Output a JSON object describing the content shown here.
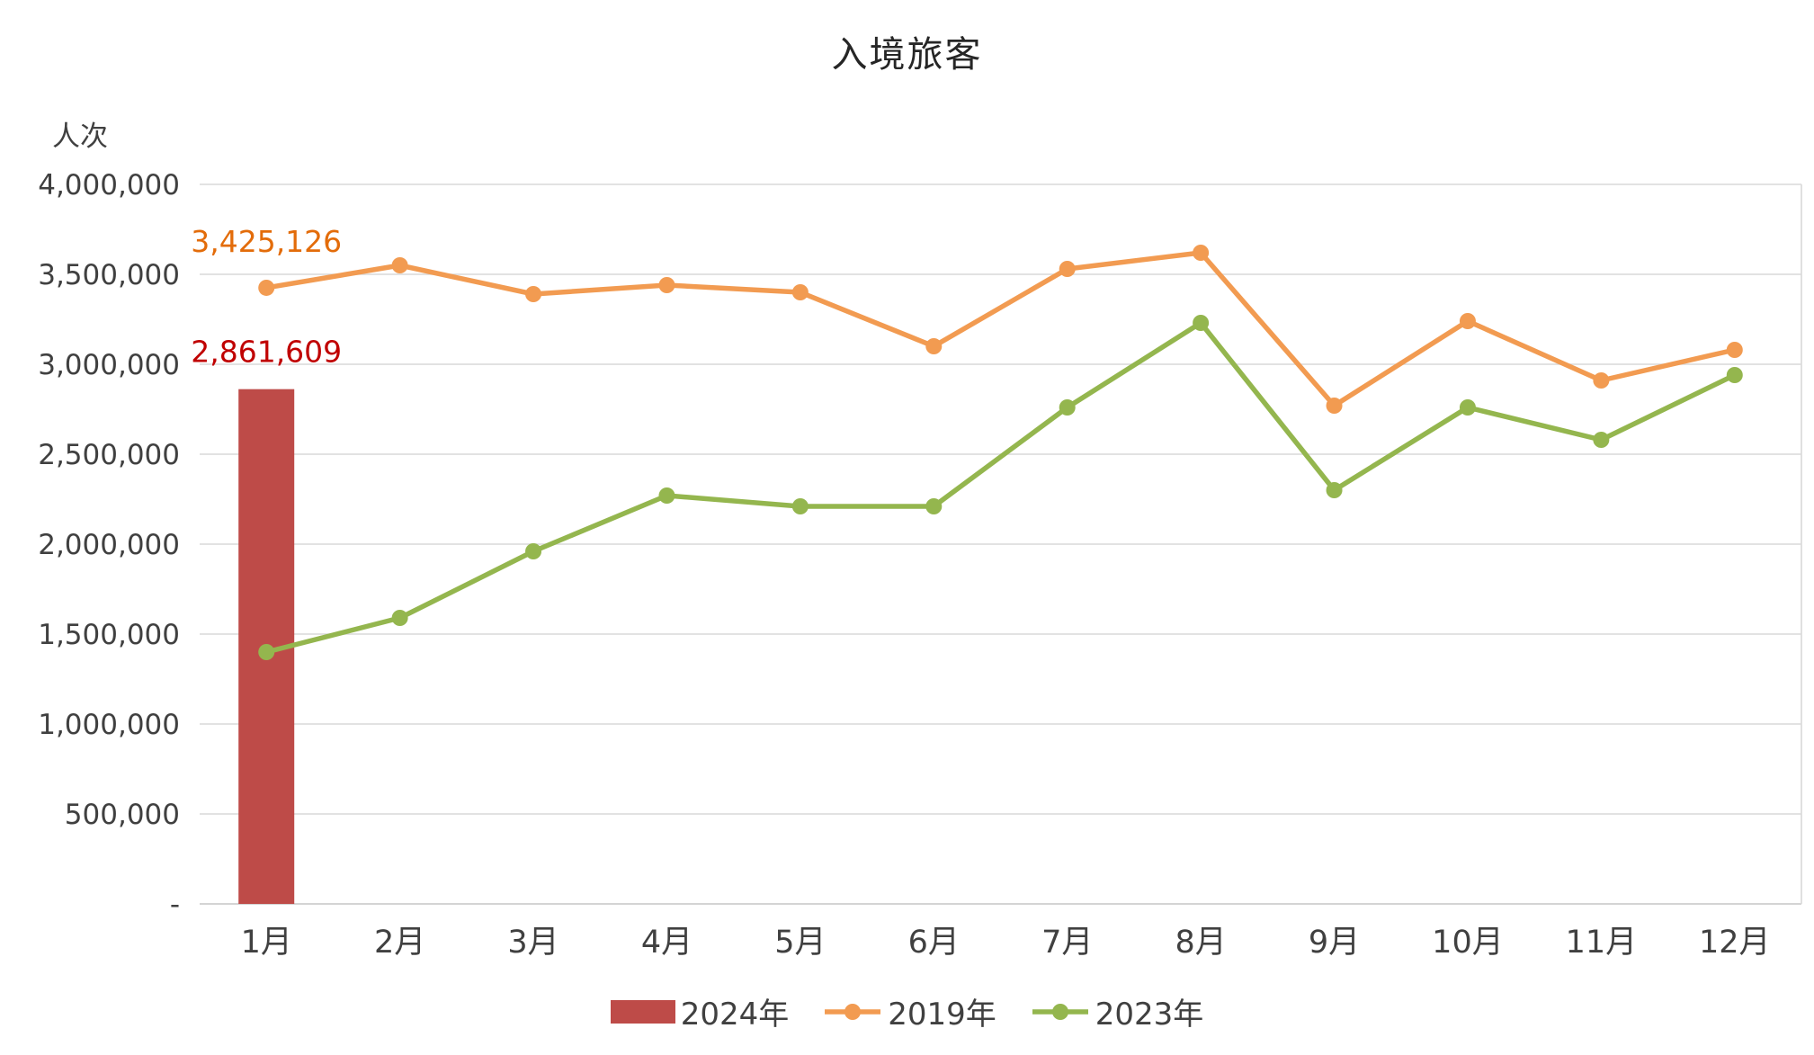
{
  "title": "入境旅客",
  "y_axis": {
    "unit_label": "人次",
    "tick_labels": [
      "4,000,000",
      "3,500,000",
      "3,000,000",
      "2,500,000",
      "2,000,000",
      "1,500,000",
      "1,000,000",
      "500,000",
      "-"
    ]
  },
  "chart_data": {
    "type": "combo",
    "title": "入境旅客",
    "ylabel": "人次",
    "ylim": [
      0,
      4000000
    ],
    "y_step": 500000,
    "grid": "horizontal",
    "legend_position": "bottom",
    "categories": [
      "1月",
      "2月",
      "3月",
      "4月",
      "5月",
      "6月",
      "7月",
      "8月",
      "9月",
      "10月",
      "11月",
      "12月"
    ],
    "series": [
      {
        "name": "2024年",
        "type": "bar",
        "color": "#BE4B48",
        "values": [
          2861609,
          null,
          null,
          null,
          null,
          null,
          null,
          null,
          null,
          null,
          null,
          null
        ]
      },
      {
        "name": "2019年",
        "type": "line",
        "color": "#F29B51",
        "values": [
          3425126,
          3550000,
          3390000,
          3440000,
          3400000,
          3100000,
          3530000,
          3620000,
          2770000,
          3240000,
          2910000,
          3080000
        ]
      },
      {
        "name": "2023年",
        "type": "line",
        "color": "#94B64E",
        "values": [
          1400000,
          1590000,
          1960000,
          2270000,
          2210000,
          2210000,
          2760000,
          3230000,
          2300000,
          2760000,
          2580000,
          2940000
        ]
      }
    ],
    "annotations": [
      {
        "text": "3,425,126",
        "series": "2019年",
        "x_index": 0,
        "color": "#E36C0A"
      },
      {
        "text": "2,861,609",
        "series": "2024年",
        "x_index": 0,
        "color": "#C00000"
      }
    ]
  },
  "legend": [
    {
      "label": "2024年",
      "type": "bar",
      "color": "#BE4B48"
    },
    {
      "label": "2019年",
      "type": "line",
      "color": "#F29B51"
    },
    {
      "label": "2023年",
      "type": "line",
      "color": "#94B64E"
    }
  ]
}
